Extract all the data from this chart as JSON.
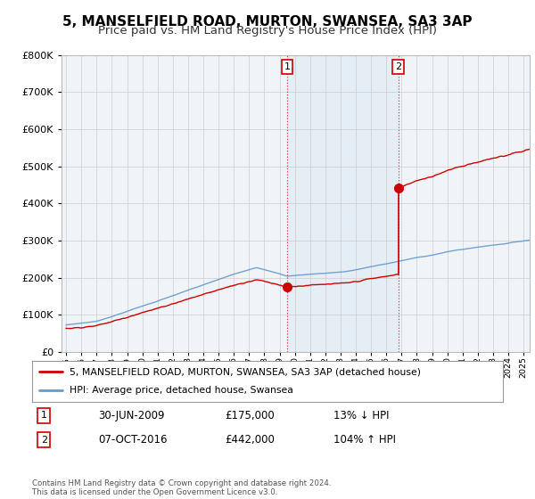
{
  "title": "5, MANSELFIELD ROAD, MURTON, SWANSEA, SA3 3AP",
  "subtitle": "Price paid vs. HM Land Registry's House Price Index (HPI)",
  "ytick_values": [
    0,
    100000,
    200000,
    300000,
    400000,
    500000,
    600000,
    700000,
    800000
  ],
  "ylim": [
    0,
    800000
  ],
  "xlim_start": 1994.7,
  "xlim_end": 2025.4,
  "purchase1_year": 2009.5,
  "purchase1_price": 175000,
  "purchase2_year": 2016.79,
  "purchase2_price": 442000,
  "line_color_property": "#cc0000",
  "line_color_hpi": "#6699cc",
  "vline_color": "#cc0000",
  "background_color": "#ffffff",
  "plot_bg_color": "#f0f4f8",
  "grid_color": "#cccccc",
  "title_fontsize": 11,
  "subtitle_fontsize": 9.5,
  "legend_label_property": "5, MANSELFIELD ROAD, MURTON, SWANSEA, SA3 3AP (detached house)",
  "legend_label_hpi": "HPI: Average price, detached house, Swansea",
  "annotation1_date": "30-JUN-2009",
  "annotation1_price": "£175,000",
  "annotation1_pct": "13% ↓ HPI",
  "annotation2_date": "07-OCT-2016",
  "annotation2_price": "£442,000",
  "annotation2_pct": "104% ↑ HPI",
  "footer": "Contains HM Land Registry data © Crown copyright and database right 2024.\nThis data is licensed under the Open Government Licence v3.0."
}
